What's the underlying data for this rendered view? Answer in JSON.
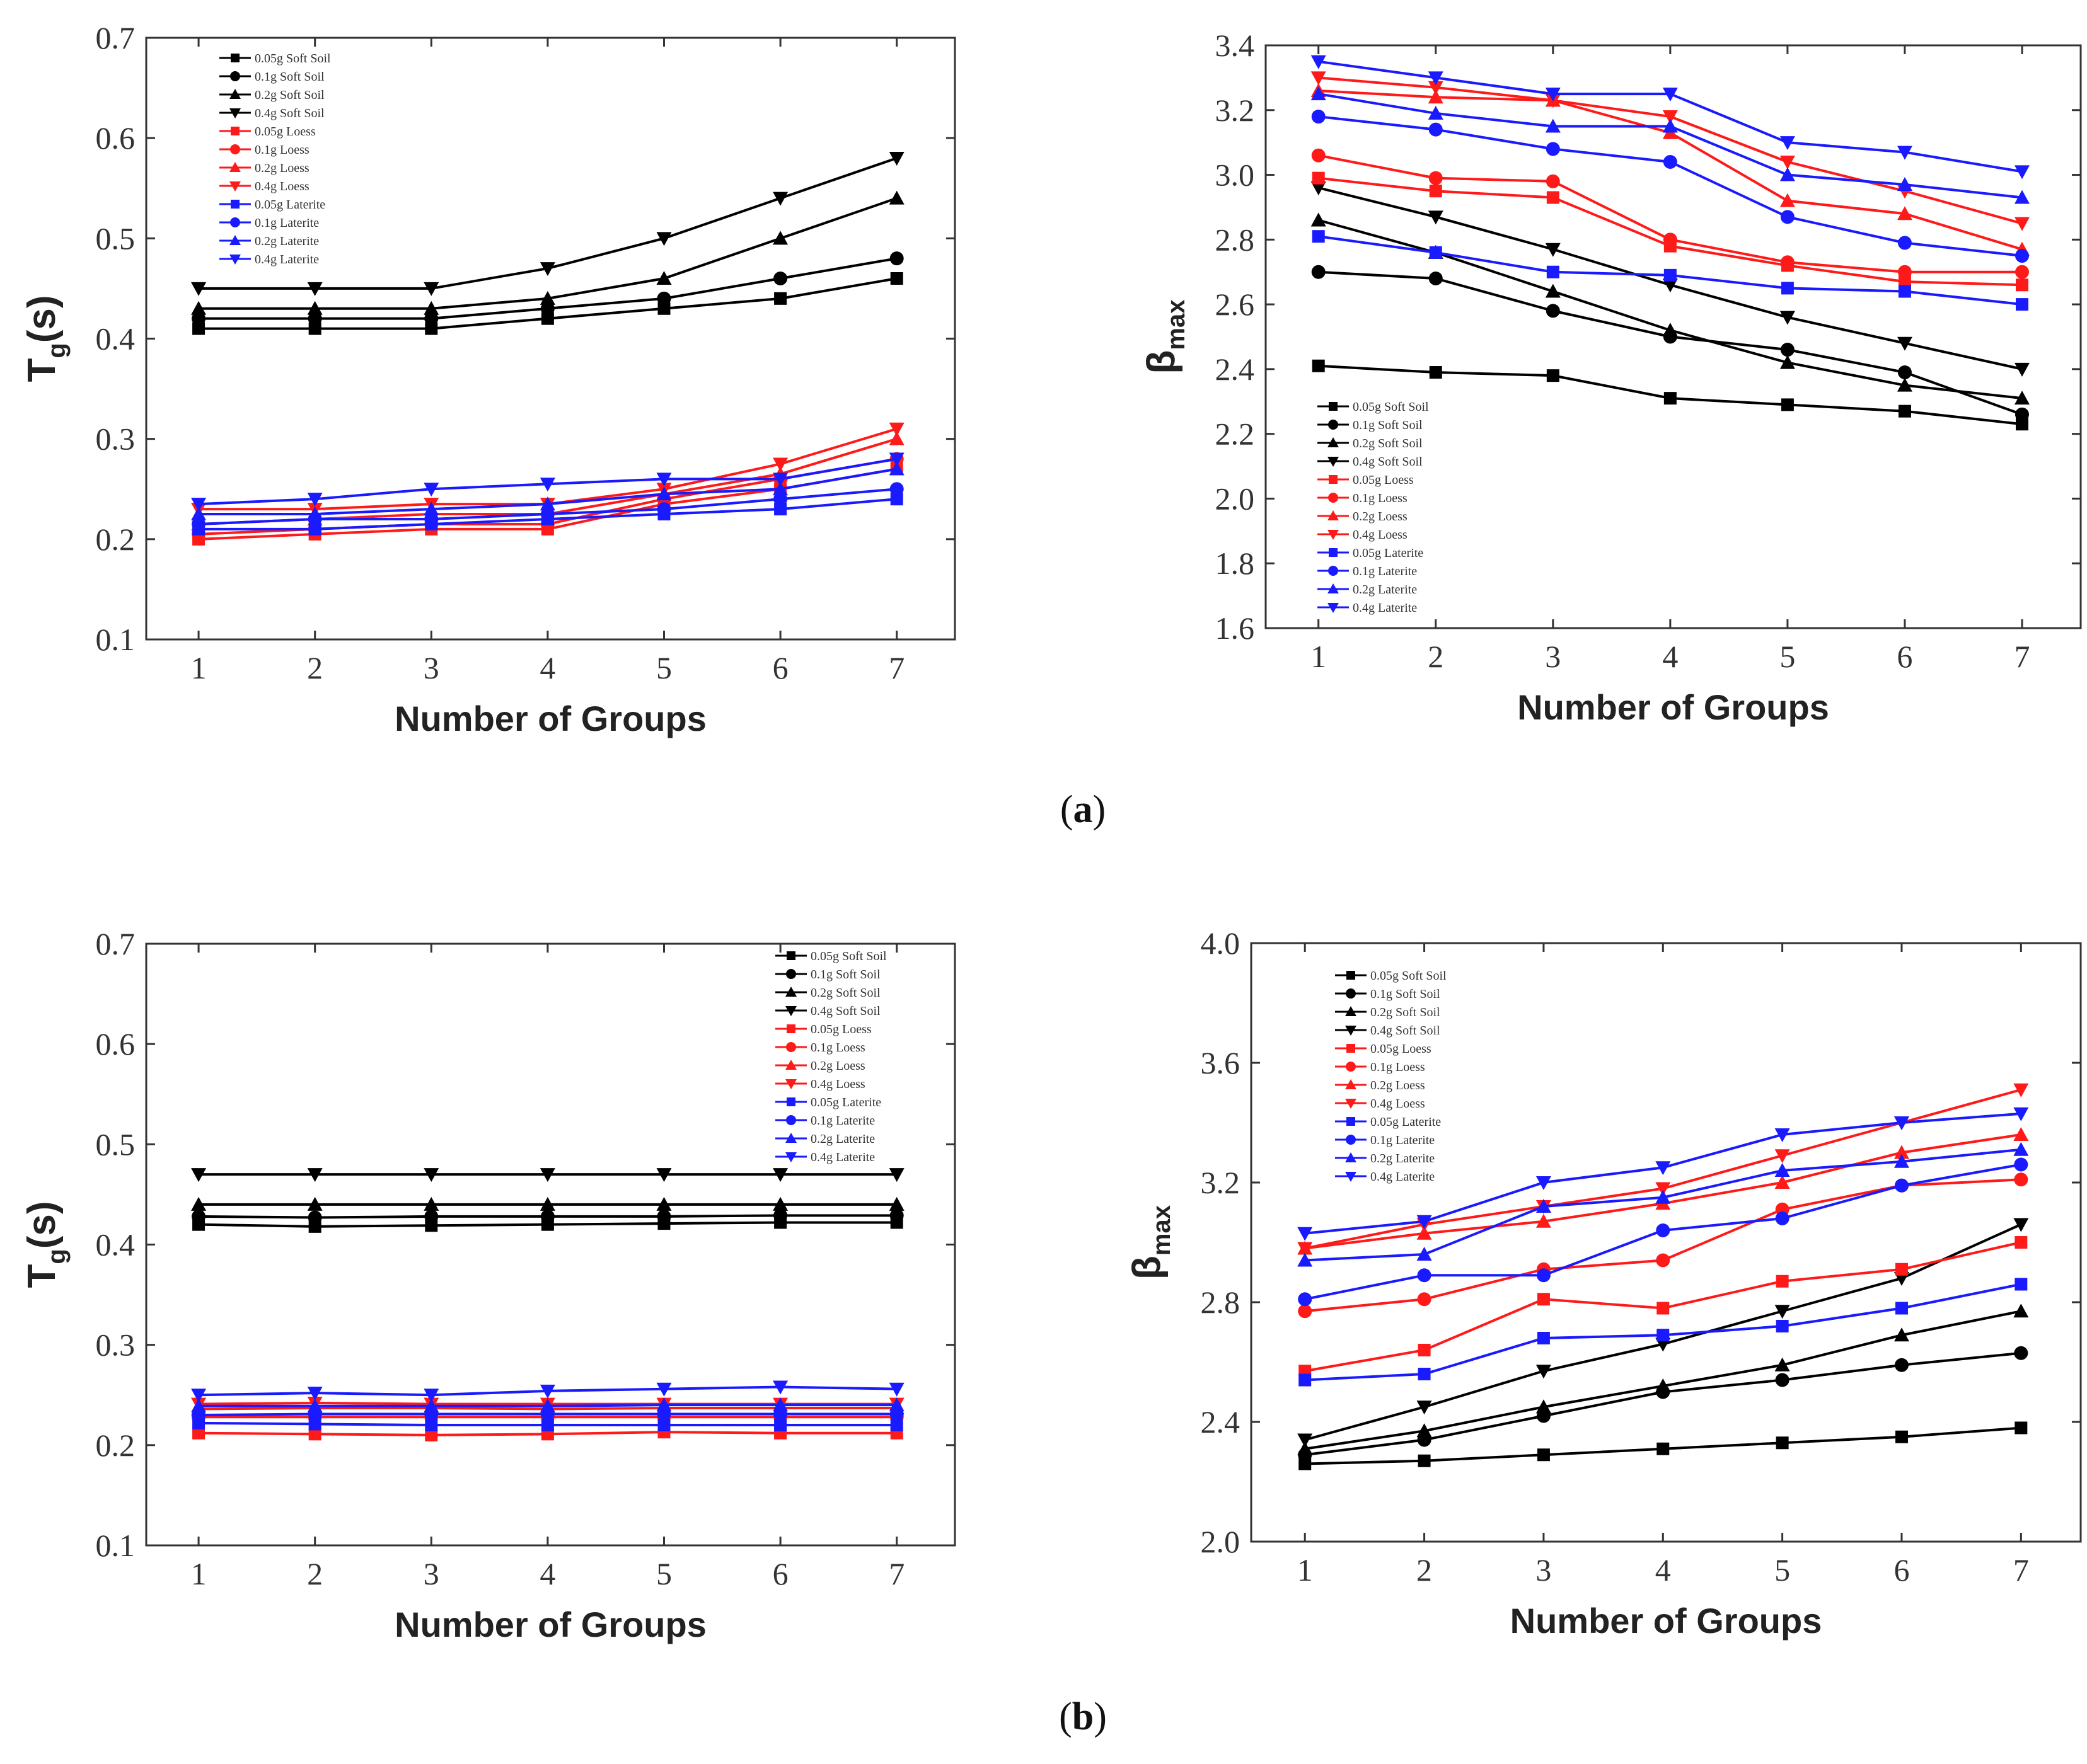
{
  "figure": {
    "panel_a": {
      "label_open": "(",
      "label_letter": "a",
      "label_close": ")"
    },
    "panel_b": {
      "label_open": "(",
      "label_letter": "b",
      "label_close": ")"
    }
  },
  "colors": {
    "black": "#000000",
    "red": "#ff1a1a",
    "blue": "#1a1aff",
    "axis": "#333333"
  },
  "chart_data": [
    {
      "id": "a-left",
      "type": "line",
      "title": "",
      "xlabel": "Number of Groups",
      "ylabel": {
        "main": "T",
        "sub": "g",
        "suffix": "(s)"
      },
      "x": [
        1,
        2,
        3,
        4,
        5,
        6,
        7
      ],
      "xlim": [
        0.55,
        7.5
      ],
      "ylim": [
        0.1,
        0.7
      ],
      "yticks": [
        "0.1",
        "0.2",
        "0.3",
        "0.4",
        "0.5",
        "0.6",
        "0.7"
      ],
      "xticks": [
        "1",
        "2",
        "3",
        "4",
        "5",
        "6",
        "7"
      ],
      "legend_position": "top-left",
      "series": [
        {
          "name": "0.05g Soft Soil",
          "color": "black",
          "marker": "square",
          "values": [
            0.41,
            0.41,
            0.41,
            0.42,
            0.43,
            0.44,
            0.46
          ]
        },
        {
          "name": "0.1g Soft Soil",
          "color": "black",
          "marker": "circle",
          "values": [
            0.42,
            0.42,
            0.42,
            0.43,
            0.44,
            0.46,
            0.48
          ]
        },
        {
          "name": "0.2g Soft Soil",
          "color": "black",
          "marker": "triangle-up",
          "values": [
            0.43,
            0.43,
            0.43,
            0.44,
            0.46,
            0.5,
            0.54
          ]
        },
        {
          "name": "0.4g Soft Soil",
          "color": "black",
          "marker": "triangle-down",
          "values": [
            0.45,
            0.45,
            0.45,
            0.47,
            0.5,
            0.54,
            0.58
          ]
        },
        {
          "name": "0.05g Loess",
          "color": "red",
          "marker": "square",
          "values": [
            0.2,
            0.205,
            0.21,
            0.21,
            0.235,
            0.25,
            0.27
          ]
        },
        {
          "name": "0.1g Loess",
          "color": "red",
          "marker": "circle",
          "values": [
            0.205,
            0.21,
            0.215,
            0.215,
            0.24,
            0.26,
            0.28
          ]
        },
        {
          "name": "0.2g Loess",
          "color": "red",
          "marker": "triangle-up",
          "values": [
            0.215,
            0.22,
            0.225,
            0.225,
            0.245,
            0.265,
            0.3
          ]
        },
        {
          "name": "0.4g Loess",
          "color": "red",
          "marker": "triangle-down",
          "values": [
            0.23,
            0.23,
            0.235,
            0.235,
            0.25,
            0.275,
            0.31
          ]
        },
        {
          "name": "0.05g Laterite",
          "color": "blue",
          "marker": "square",
          "values": [
            0.21,
            0.21,
            0.215,
            0.22,
            0.225,
            0.23,
            0.24
          ]
        },
        {
          "name": "0.1g Laterite",
          "color": "blue",
          "marker": "circle",
          "values": [
            0.215,
            0.22,
            0.22,
            0.225,
            0.23,
            0.24,
            0.25
          ]
        },
        {
          "name": "0.2g Laterite",
          "color": "blue",
          "marker": "triangle-up",
          "values": [
            0.225,
            0.225,
            0.23,
            0.235,
            0.245,
            0.25,
            0.27
          ]
        },
        {
          "name": "0.4g Laterite",
          "color": "blue",
          "marker": "triangle-down",
          "values": [
            0.235,
            0.24,
            0.25,
            0.255,
            0.26,
            0.26,
            0.28
          ]
        }
      ]
    },
    {
      "id": "a-right",
      "type": "line",
      "title": "",
      "xlabel": "Number of Groups",
      "ylabel": {
        "main": "β",
        "sub": "max",
        "suffix": ""
      },
      "x": [
        1,
        2,
        3,
        4,
        5,
        6,
        7
      ],
      "xlim": [
        0.55,
        7.5
      ],
      "ylim": [
        1.6,
        3.4
      ],
      "yticks": [
        "1.6",
        "1.8",
        "2.0",
        "2.2",
        "2.4",
        "2.6",
        "2.8",
        "3.0",
        "3.2",
        "3.4"
      ],
      "xticks": [
        "1",
        "2",
        "3",
        "4",
        "5",
        "6",
        "7"
      ],
      "legend_position": "bottom-left",
      "series": [
        {
          "name": "0.05g Soft Soil",
          "color": "black",
          "marker": "square",
          "values": [
            2.41,
            2.39,
            2.38,
            2.31,
            2.29,
            2.27,
            2.23
          ]
        },
        {
          "name": "0.1g Soft Soil",
          "color": "black",
          "marker": "circle",
          "values": [
            2.7,
            2.68,
            2.58,
            2.5,
            2.46,
            2.39,
            2.26
          ]
        },
        {
          "name": "0.2g Soft Soil",
          "color": "black",
          "marker": "triangle-up",
          "values": [
            2.86,
            2.76,
            2.64,
            2.52,
            2.42,
            2.35,
            2.31
          ]
        },
        {
          "name": "0.4g Soft Soil",
          "color": "black",
          "marker": "triangle-down",
          "values": [
            2.96,
            2.87,
            2.77,
            2.66,
            2.56,
            2.48,
            2.4
          ]
        },
        {
          "name": "0.05g Loess",
          "color": "red",
          "marker": "square",
          "values": [
            2.99,
            2.95,
            2.93,
            2.78,
            2.72,
            2.67,
            2.66
          ]
        },
        {
          "name": "0.1g Loess",
          "color": "red",
          "marker": "circle",
          "values": [
            3.06,
            2.99,
            2.98,
            2.8,
            2.73,
            2.7,
            2.7
          ]
        },
        {
          "name": "0.2g Loess",
          "color": "red",
          "marker": "triangle-up",
          "values": [
            3.26,
            3.24,
            3.23,
            3.13,
            2.92,
            2.88,
            2.77
          ]
        },
        {
          "name": "0.4g Loess",
          "color": "red",
          "marker": "triangle-down",
          "values": [
            3.3,
            3.27,
            3.23,
            3.18,
            3.04,
            2.95,
            2.85
          ]
        },
        {
          "name": "0.05g Laterite",
          "color": "blue",
          "marker": "square",
          "values": [
            2.81,
            2.76,
            2.7,
            2.69,
            2.65,
            2.64,
            2.6
          ]
        },
        {
          "name": "0.1g Laterite",
          "color": "blue",
          "marker": "circle",
          "values": [
            3.18,
            3.14,
            3.08,
            3.04,
            2.87,
            2.79,
            2.75
          ]
        },
        {
          "name": "0.2g Laterite",
          "color": "blue",
          "marker": "triangle-up",
          "values": [
            3.25,
            3.19,
            3.15,
            3.15,
            3.0,
            2.97,
            2.93
          ]
        },
        {
          "name": "0.4g Laterite",
          "color": "blue",
          "marker": "triangle-down",
          "values": [
            3.35,
            3.3,
            3.25,
            3.25,
            3.1,
            3.07,
            3.01
          ]
        }
      ]
    },
    {
      "id": "b-left",
      "type": "line",
      "title": "",
      "xlabel": "Number of Groups",
      "ylabel": {
        "main": "T",
        "sub": "g",
        "suffix": "(s)"
      },
      "x": [
        1,
        2,
        3,
        4,
        5,
        6,
        7
      ],
      "xlim": [
        0.55,
        7.5
      ],
      "ylim": [
        0.1,
        0.7
      ],
      "yticks": [
        "0.1",
        "0.2",
        "0.3",
        "0.4",
        "0.5",
        "0.6",
        "0.7"
      ],
      "xticks": [
        "1",
        "2",
        "3",
        "4",
        "5",
        "6",
        "7"
      ],
      "legend_position": "top-right",
      "series": [
        {
          "name": "0.05g Soft Soil",
          "color": "black",
          "marker": "square",
          "values": [
            0.42,
            0.418,
            0.419,
            0.42,
            0.421,
            0.422,
            0.422
          ]
        },
        {
          "name": "0.1g Soft Soil",
          "color": "black",
          "marker": "circle",
          "values": [
            0.428,
            0.427,
            0.428,
            0.428,
            0.428,
            0.429,
            0.429
          ]
        },
        {
          "name": "0.2g Soft Soil",
          "color": "black",
          "marker": "triangle-up",
          "values": [
            0.44,
            0.44,
            0.44,
            0.44,
            0.44,
            0.44,
            0.44
          ]
        },
        {
          "name": "0.4g Soft Soil",
          "color": "black",
          "marker": "triangle-down",
          "values": [
            0.47,
            0.47,
            0.47,
            0.47,
            0.47,
            0.47,
            0.47
          ]
        },
        {
          "name": "0.05g Loess",
          "color": "red",
          "marker": "square",
          "values": [
            0.212,
            0.211,
            0.21,
            0.211,
            0.213,
            0.212,
            0.212
          ]
        },
        {
          "name": "0.1g Loess",
          "color": "red",
          "marker": "circle",
          "values": [
            0.228,
            0.228,
            0.228,
            0.228,
            0.228,
            0.228,
            0.228
          ]
        },
        {
          "name": "0.2g Loess",
          "color": "red",
          "marker": "triangle-up",
          "values": [
            0.236,
            0.237,
            0.237,
            0.236,
            0.237,
            0.237,
            0.237
          ]
        },
        {
          "name": "0.4g Loess",
          "color": "red",
          "marker": "triangle-down",
          "values": [
            0.241,
            0.242,
            0.241,
            0.241,
            0.241,
            0.241,
            0.241
          ]
        },
        {
          "name": "0.05g Laterite",
          "color": "blue",
          "marker": "square",
          "values": [
            0.222,
            0.221,
            0.22,
            0.22,
            0.22,
            0.22,
            0.22
          ]
        },
        {
          "name": "0.1g Laterite",
          "color": "blue",
          "marker": "circle",
          "values": [
            0.23,
            0.231,
            0.231,
            0.231,
            0.231,
            0.231,
            0.231
          ]
        },
        {
          "name": "0.2g Laterite",
          "color": "blue",
          "marker": "triangle-up",
          "values": [
            0.239,
            0.239,
            0.239,
            0.239,
            0.24,
            0.24,
            0.24
          ]
        },
        {
          "name": "0.4g Laterite",
          "color": "blue",
          "marker": "triangle-down",
          "values": [
            0.25,
            0.252,
            0.25,
            0.254,
            0.256,
            0.258,
            0.256
          ]
        }
      ]
    },
    {
      "id": "b-right",
      "type": "line",
      "title": "",
      "xlabel": "Number of Groups",
      "ylabel": {
        "main": "β",
        "sub": "max",
        "suffix": ""
      },
      "x": [
        1,
        2,
        3,
        4,
        5,
        6,
        7
      ],
      "xlim": [
        0.55,
        7.5
      ],
      "ylim": [
        2.0,
        4.0
      ],
      "yticks": [
        "2.0",
        "2.4",
        "2.8",
        "3.2",
        "3.6",
        "4.0"
      ],
      "xticks": [
        "1",
        "2",
        "3",
        "4",
        "5",
        "6",
        "7"
      ],
      "legend_position": "top-left",
      "series": [
        {
          "name": "0.05g Soft Soil",
          "color": "black",
          "marker": "square",
          "values": [
            2.26,
            2.27,
            2.29,
            2.31,
            2.33,
            2.35,
            2.38
          ]
        },
        {
          "name": "0.1g Soft Soil",
          "color": "black",
          "marker": "circle",
          "values": [
            2.29,
            2.34,
            2.42,
            2.5,
            2.54,
            2.59,
            2.63
          ]
        },
        {
          "name": "0.2g Soft Soil",
          "color": "black",
          "marker": "triangle-up",
          "values": [
            2.31,
            2.37,
            2.45,
            2.52,
            2.59,
            2.69,
            2.77
          ]
        },
        {
          "name": "0.4g Soft Soil",
          "color": "black",
          "marker": "triangle-down",
          "values": [
            2.34,
            2.45,
            2.57,
            2.66,
            2.77,
            2.88,
            3.06
          ]
        },
        {
          "name": "0.05g Loess",
          "color": "red",
          "marker": "square",
          "values": [
            2.57,
            2.64,
            2.81,
            2.78,
            2.87,
            2.91,
            3.0
          ]
        },
        {
          "name": "0.1g Loess",
          "color": "red",
          "marker": "circle",
          "values": [
            2.77,
            2.81,
            2.91,
            2.94,
            3.11,
            3.19,
            3.21
          ]
        },
        {
          "name": "0.2g Loess",
          "color": "red",
          "marker": "triangle-up",
          "values": [
            2.98,
            3.03,
            3.07,
            3.13,
            3.2,
            3.3,
            3.36
          ]
        },
        {
          "name": "0.4g Loess",
          "color": "red",
          "marker": "triangle-down",
          "values": [
            2.98,
            3.06,
            3.12,
            3.18,
            3.29,
            3.4,
            3.51
          ]
        },
        {
          "name": "0.05g Laterite",
          "color": "blue",
          "marker": "square",
          "values": [
            2.54,
            2.56,
            2.68,
            2.69,
            2.72,
            2.78,
            2.86
          ]
        },
        {
          "name": "0.1g Laterite",
          "color": "blue",
          "marker": "circle",
          "values": [
            2.81,
            2.89,
            2.89,
            3.04,
            3.08,
            3.19,
            3.26
          ]
        },
        {
          "name": "0.2g Laterite",
          "color": "blue",
          "marker": "triangle-up",
          "values": [
            2.94,
            2.96,
            3.12,
            3.15,
            3.24,
            3.27,
            3.31
          ]
        },
        {
          "name": "0.4g Laterite",
          "color": "blue",
          "marker": "triangle-down",
          "values": [
            3.03,
            3.07,
            3.2,
            3.25,
            3.36,
            3.4,
            3.43
          ]
        }
      ]
    }
  ]
}
